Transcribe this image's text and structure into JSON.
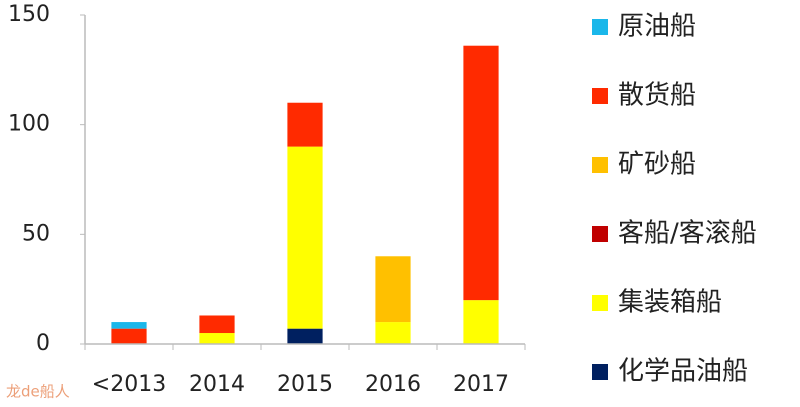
{
  "chart_data": {
    "type": "stacked_bar",
    "categories": [
      "<2013",
      "2014",
      "2015",
      "2016",
      "2017"
    ],
    "series": [
      {
        "name": "原油船",
        "color": "#1ab7ea",
        "values": [
          3,
          0,
          0,
          0,
          0
        ]
      },
      {
        "name": "散货船",
        "color": "#ff2a00",
        "values": [
          7,
          8,
          20,
          0,
          116
        ]
      },
      {
        "name": "矿砂船",
        "color": "#ffc000",
        "values": [
          0,
          0,
          0,
          30,
          0
        ]
      },
      {
        "name": "客船/客滚船",
        "color": "#c00000",
        "values": [
          0,
          0,
          0,
          0,
          0
        ]
      },
      {
        "name": "集装箱船",
        "color": "#ffff00",
        "values": [
          0,
          5,
          83,
          10,
          20
        ]
      },
      {
        "name": "化学品油船",
        "color": "#002060",
        "values": [
          0,
          0,
          7,
          0,
          0
        ]
      }
    ],
    "ylim": [
      0,
      150
    ],
    "yticks": [
      0,
      50,
      100,
      150
    ],
    "watermark": "龙de船人"
  }
}
